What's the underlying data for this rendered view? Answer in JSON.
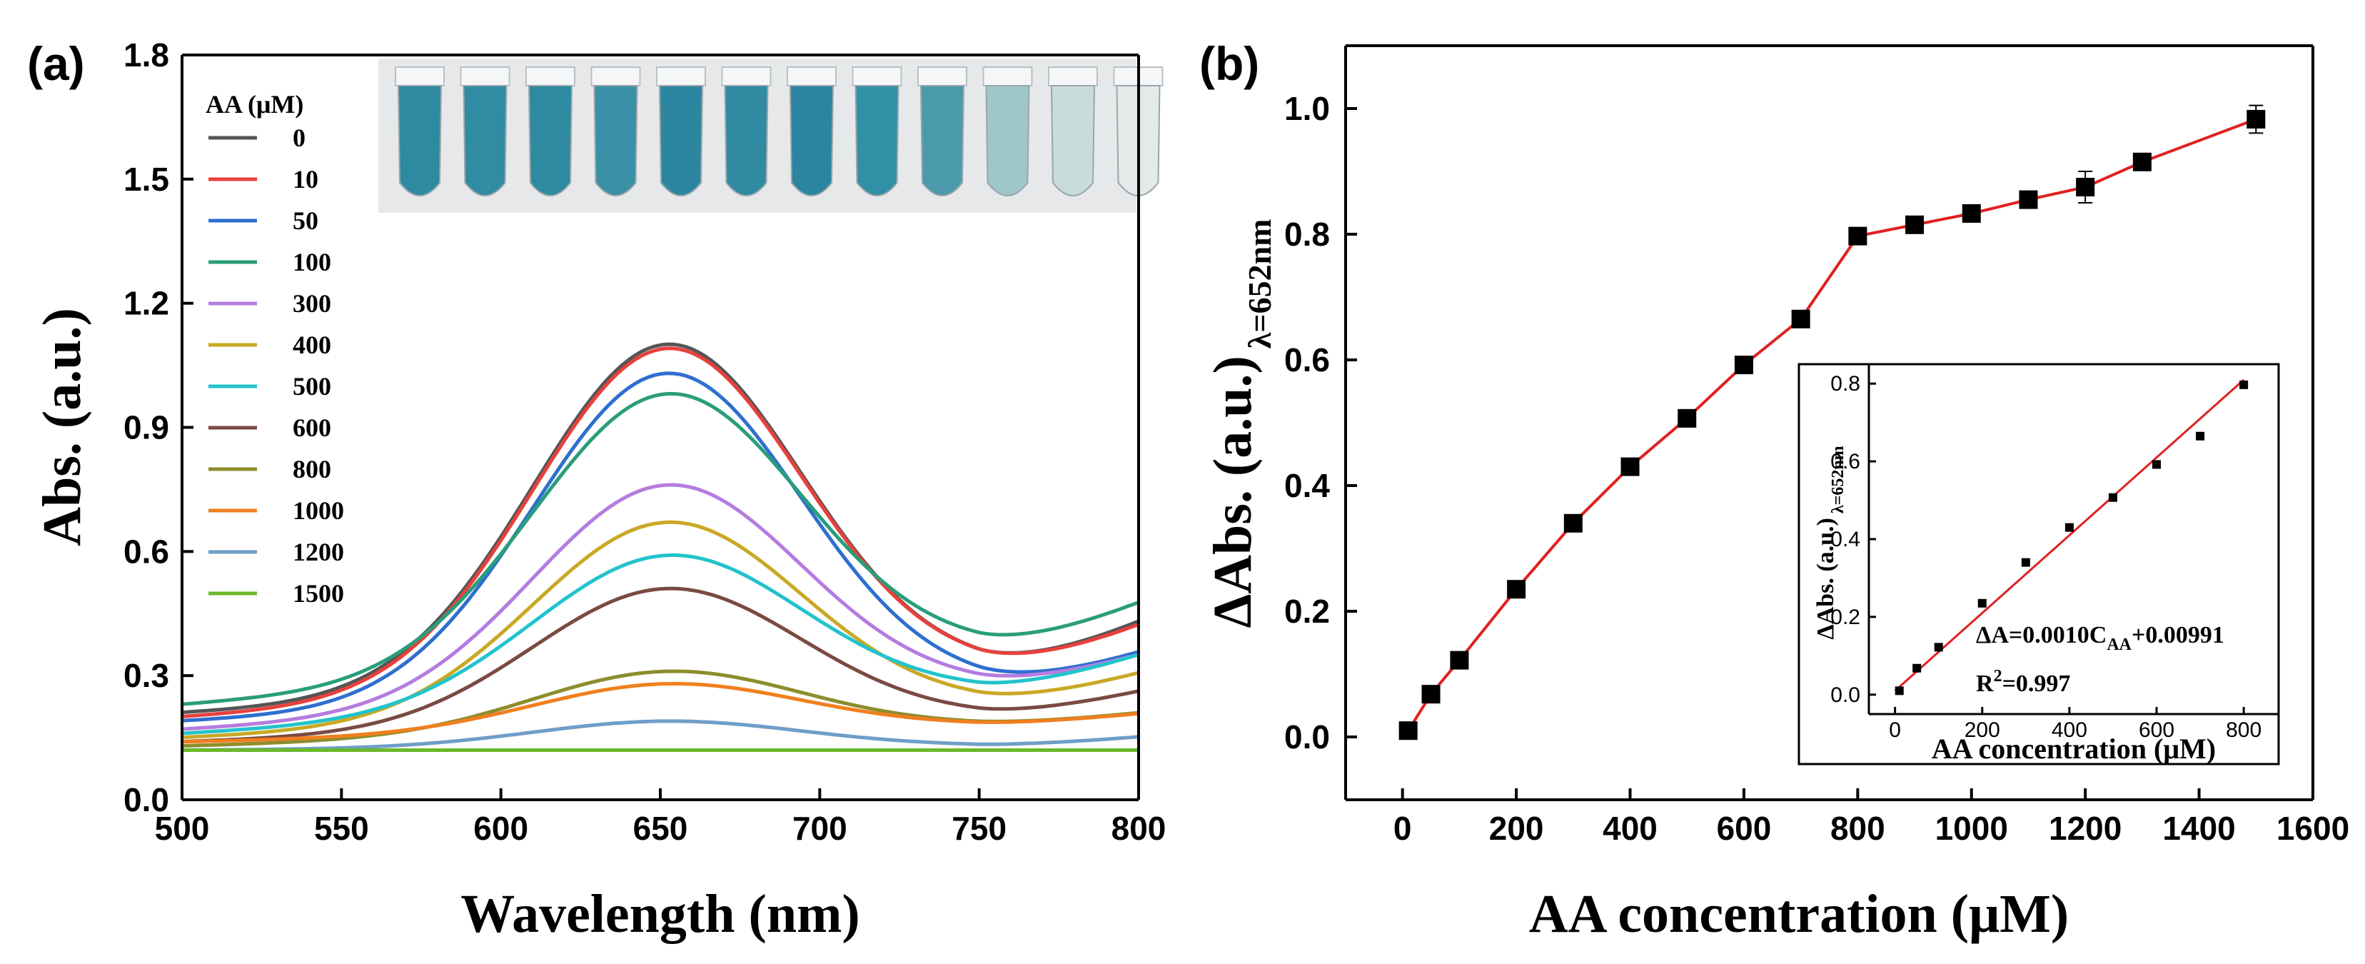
{
  "chart_data": [
    {
      "panel": "(a)",
      "type": "line",
      "title": "",
      "xlabel": "Wavelength (nm)",
      "ylabel": "Abs. (a.u.)",
      "xlim": [
        500,
        800
      ],
      "ylim": [
        0.0,
        1.8
      ],
      "xticks": [
        "500",
        "550",
        "600",
        "650",
        "700",
        "750",
        "800"
      ],
      "yticks": [
        "0.0",
        "0.3",
        "0.6",
        "0.9",
        "1.2",
        "1.5",
        "1.8"
      ],
      "legend_title": "AA (μM)",
      "legend_position": "top-left",
      "inset_photo": "row of 12 centrifuge tubes, blue color fading to clear with increasing AA",
      "series": [
        {
          "name": "0",
          "color": "#555555",
          "base500": 0.21,
          "peak": 1.1,
          "min750": 0.31,
          "end800": 0.41
        },
        {
          "name": "10",
          "color": "#e8403c",
          "base500": 0.2,
          "peak": 1.09,
          "min750": 0.31,
          "end800": 0.4
        },
        {
          "name": "50",
          "color": "#2e6fcf",
          "base500": 0.19,
          "peak": 1.03,
          "min750": 0.27,
          "end800": 0.34
        },
        {
          "name": "100",
          "color": "#2a9d7a",
          "base500": 0.23,
          "peak": 0.98,
          "min750": 0.36,
          "end800": 0.45
        },
        {
          "name": "300",
          "color": "#b57ce0",
          "base500": 0.17,
          "peak": 0.76,
          "min750": 0.27,
          "end800": 0.33
        },
        {
          "name": "400",
          "color": "#c9a825",
          "base500": 0.15,
          "peak": 0.67,
          "min750": 0.23,
          "end800": 0.29
        },
        {
          "name": "500",
          "color": "#22c3cc",
          "base500": 0.16,
          "peak": 0.59,
          "min750": 0.26,
          "end800": 0.33
        },
        {
          "name": "600",
          "color": "#7a4a42",
          "base500": 0.14,
          "peak": 0.51,
          "min750": 0.2,
          "end800": 0.25
        },
        {
          "name": "800",
          "color": "#8d8d2c",
          "base500": 0.13,
          "peak": 0.31,
          "min750": 0.18,
          "end800": 0.2
        },
        {
          "name": "1000",
          "color": "#f07f1f",
          "base500": 0.14,
          "peak": 0.28,
          "min750": 0.18,
          "end800": 0.2
        },
        {
          "name": "1200",
          "color": "#6f9ec8",
          "base500": 0.12,
          "peak": 0.19,
          "min750": 0.13,
          "end800": 0.15
        },
        {
          "name": "1500",
          "color": "#6ab829",
          "base500": 0.12,
          "peak": 0.12,
          "min750": 0.12,
          "end800": 0.12
        }
      ]
    },
    {
      "panel": "(b)",
      "type": "scatter",
      "title": "",
      "xlabel": "AA concentration (μM)",
      "ylabel": "ΔAbs. (a.u.)",
      "ylabel_sub": "λ=652nm",
      "xlim": [
        -100,
        1600
      ],
      "ylim": [
        -0.1,
        1.1
      ],
      "xticks": [
        "0",
        "200",
        "400",
        "600",
        "800",
        "1000",
        "1200",
        "1400",
        "1600"
      ],
      "yticks": [
        "0.0",
        "0.2",
        "0.4",
        "0.6",
        "0.8",
        "1.0"
      ],
      "line_color": "#e02020",
      "marker_color": "#000000",
      "x": [
        10,
        50,
        100,
        200,
        300,
        400,
        500,
        600,
        700,
        800,
        900,
        1000,
        1100,
        1200,
        1300,
        1500
      ],
      "y": [
        0.01,
        0.068,
        0.122,
        0.235,
        0.34,
        0.43,
        0.507,
        0.592,
        0.665,
        0.797,
        0.815,
        0.833,
        0.855,
        0.875,
        0.915,
        0.983
      ],
      "yerr": [
        0.004,
        0.004,
        0.004,
        0.004,
        0.004,
        0.004,
        0.004,
        0.004,
        0.004,
        0.004,
        0.012,
        0.006,
        0.006,
        0.025,
        0.006,
        0.022
      ],
      "inset": {
        "type": "scatter",
        "xlabel": "AA concentration (μM)",
        "ylabel": "ΔAbs. (a.u.)",
        "ylabel_sub": "λ=652nm",
        "xlim": [
          -60,
          880
        ],
        "ylim": [
          -0.05,
          0.85
        ],
        "xticks": [
          "0",
          "200",
          "400",
          "600",
          "800"
        ],
        "yticks": [
          "0.0",
          "0.2",
          "0.4",
          "0.6",
          "0.8"
        ],
        "x": [
          10,
          50,
          100,
          200,
          300,
          400,
          500,
          600,
          700,
          800
        ],
        "y": [
          0.01,
          0.068,
          0.122,
          0.235,
          0.34,
          0.43,
          0.507,
          0.592,
          0.665,
          0.797
        ],
        "fit": {
          "slope": 0.001,
          "intercept": 0.00991
        },
        "equation_prefix": "ΔA=0.0010C",
        "equation_sub": "AA",
        "equation_suffix": "+0.00991",
        "r2_prefix": "R",
        "r2_sup": "2",
        "r2_suffix": "=0.997"
      }
    }
  ]
}
